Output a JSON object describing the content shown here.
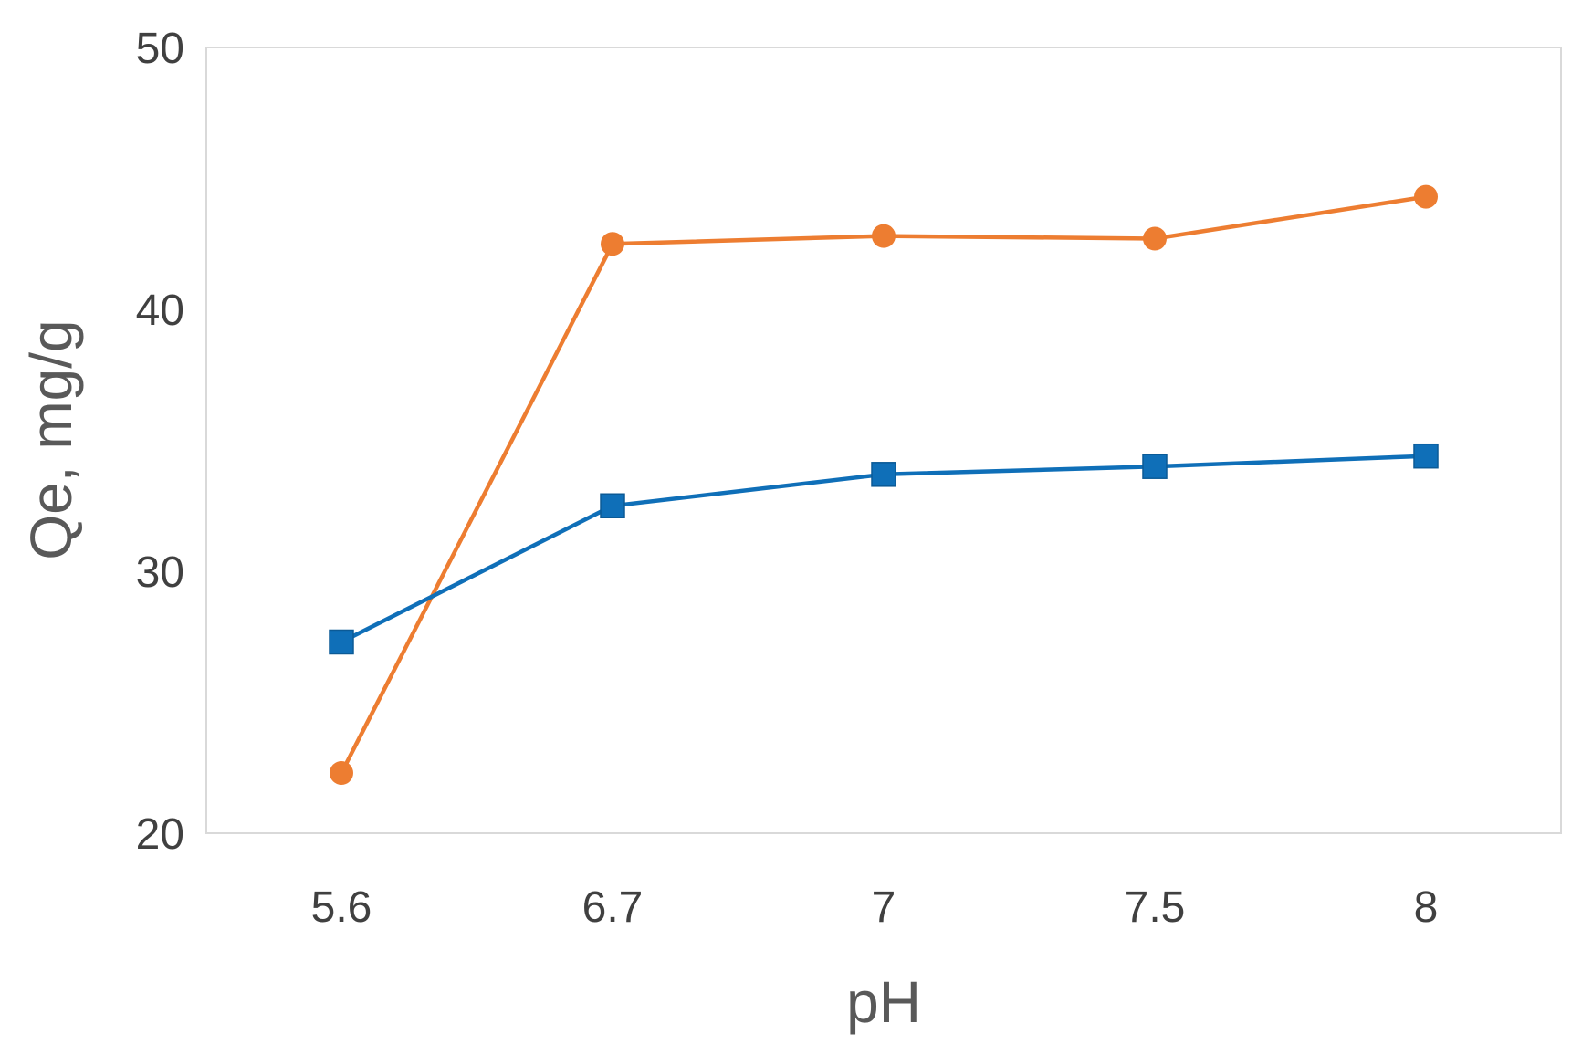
{
  "chart_data": {
    "type": "line",
    "title": "",
    "xlabel": "pH",
    "ylabel": "Qe, mg/g",
    "categories": [
      "5.6",
      "6.7",
      "7",
      "7.5",
      "8"
    ],
    "ylim": [
      20,
      50
    ],
    "yticks": [
      20,
      30,
      40,
      50
    ],
    "grid": false,
    "legend": "none",
    "series": [
      {
        "marker": "circle",
        "color": "#ED7D31",
        "values": [
          22.3,
          42.5,
          42.8,
          42.7,
          44.3
        ]
      },
      {
        "marker": "square",
        "color": "#0F6FB8",
        "values": [
          27.3,
          32.5,
          33.7,
          34.0,
          34.4
        ]
      }
    ]
  }
}
